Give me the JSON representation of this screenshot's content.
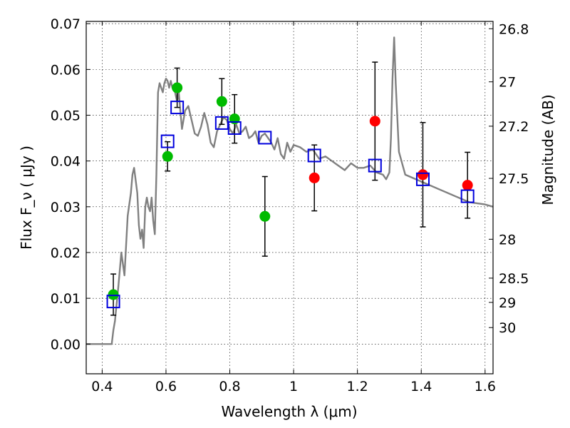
{
  "chart_data": {
    "type": "scatter",
    "xlabel": "Wavelength  λ (μm)",
    "ylabel": "Flux  F_ν  ( μJy )",
    "y2label": "Magnitude (AB)",
    "xlim": [
      0.35,
      1.625
    ],
    "ylim": [
      -0.0065,
      0.0705
    ],
    "grid": true,
    "x_ticks": [
      0.4,
      0.6,
      0.8,
      1.0,
      1.2,
      1.4,
      1.6
    ],
    "x_tick_labels": [
      "0.4",
      "0.6",
      "0.8",
      "1",
      "1.2",
      "1.4",
      "1.6"
    ],
    "y_ticks": [
      0.0,
      0.01,
      0.02,
      0.03,
      0.04,
      0.05,
      0.06,
      0.07
    ],
    "y_tick_labels": [
      "0.00",
      "0.01",
      "0.02",
      "0.03",
      "0.04",
      "0.05",
      "0.06",
      "0.07"
    ],
    "y2_ticks": [
      {
        "label": "26.8",
        "flux": 0.0689
      },
      {
        "label": "27",
        "flux": 0.0573
      },
      {
        "label": "27.2",
        "flux": 0.0476
      },
      {
        "label": "27.5",
        "flux": 0.0362
      },
      {
        "label": "28",
        "flux": 0.0229
      },
      {
        "label": "28.5",
        "flux": 0.0144
      },
      {
        "label": "29",
        "flux": 0.0091
      },
      {
        "label": "30",
        "flux": 0.0036
      }
    ],
    "colors": {
      "model": "#808080",
      "green_points": "#00bb00",
      "red_points": "#ff0000",
      "squares": "#0000dd",
      "errorbars": "#000000"
    },
    "series": [
      {
        "marker": "line",
        "x": [
          0.35,
          0.43,
          0.435,
          0.44,
          0.45,
          0.46,
          0.47,
          0.48,
          0.49,
          0.495,
          0.5,
          0.51,
          0.515,
          0.52,
          0.525,
          0.53,
          0.535,
          0.54,
          0.545,
          0.55,
          0.555,
          0.56,
          0.565,
          0.57,
          0.575,
          0.58,
          0.585,
          0.59,
          0.595,
          0.6,
          0.605,
          0.61,
          0.615,
          0.62,
          0.625,
          0.63,
          0.635,
          0.64,
          0.645,
          0.65,
          0.66,
          0.67,
          0.68,
          0.69,
          0.7,
          0.71,
          0.72,
          0.73,
          0.74,
          0.75,
          0.76,
          0.77,
          0.78,
          0.79,
          0.8,
          0.81,
          0.82,
          0.83,
          0.84,
          0.85,
          0.86,
          0.87,
          0.88,
          0.89,
          0.9,
          0.91,
          0.92,
          0.93,
          0.94,
          0.95,
          0.96,
          0.97,
          0.98,
          0.99,
          1.0,
          1.02,
          1.04,
          1.06,
          1.08,
          1.1,
          1.12,
          1.14,
          1.16,
          1.18,
          1.2,
          1.22,
          1.24,
          1.26,
          1.28,
          1.29,
          1.3,
          1.305,
          1.31,
          1.315,
          1.32,
          1.33,
          1.35,
          1.4,
          1.45,
          1.5,
          1.55,
          1.6,
          1.625
        ],
        "y": [
          0.0,
          0.0,
          0.003,
          0.005,
          0.012,
          0.02,
          0.015,
          0.028,
          0.033,
          0.037,
          0.0385,
          0.033,
          0.026,
          0.023,
          0.025,
          0.021,
          0.03,
          0.032,
          0.03,
          0.029,
          0.032,
          0.027,
          0.024,
          0.037,
          0.055,
          0.057,
          0.056,
          0.055,
          0.057,
          0.058,
          0.0575,
          0.056,
          0.0575,
          0.056,
          0.0565,
          0.0545,
          0.053,
          0.055,
          0.051,
          0.047,
          0.051,
          0.052,
          0.049,
          0.046,
          0.0455,
          0.0475,
          0.0505,
          0.048,
          0.044,
          0.043,
          0.0465,
          0.048,
          0.0495,
          0.049,
          0.047,
          0.046,
          0.048,
          0.046,
          0.0465,
          0.0475,
          0.045,
          0.0455,
          0.0465,
          0.044,
          0.0455,
          0.046,
          0.045,
          0.044,
          0.0425,
          0.045,
          0.0415,
          0.0405,
          0.044,
          0.042,
          0.0435,
          0.043,
          0.042,
          0.0425,
          0.0405,
          0.041,
          0.04,
          0.039,
          0.038,
          0.0395,
          0.0385,
          0.0385,
          0.039,
          0.0375,
          0.037,
          0.036,
          0.0375,
          0.045,
          0.058,
          0.067,
          0.057,
          0.042,
          0.037,
          0.0355,
          0.034,
          0.0325,
          0.031,
          0.0305,
          0.03
        ]
      },
      {
        "marker": "filled-circle",
        "color": "green",
        "points": [
          {
            "x": 0.435,
            "y": 0.0108,
            "yerr": 0.0045
          },
          {
            "x": 0.605,
            "y": 0.041,
            "yerr": 0.0032
          },
          {
            "x": 0.635,
            "y": 0.056,
            "yerr": 0.0043
          },
          {
            "x": 0.775,
            "y": 0.053,
            "yerr": 0.005
          },
          {
            "x": 0.815,
            "y": 0.0492,
            "yerr": 0.0053
          },
          {
            "x": 0.91,
            "y": 0.0279,
            "yerr": 0.0087
          }
        ]
      },
      {
        "marker": "filled-circle",
        "color": "red",
        "points": [
          {
            "x": 1.065,
            "y": 0.0363,
            "yerr": 0.0072
          },
          {
            "x": 1.255,
            "y": 0.0487,
            "yerr": 0.0129
          },
          {
            "x": 1.405,
            "y": 0.037,
            "yerr": 0.0114
          },
          {
            "x": 1.545,
            "y": 0.0347,
            "yerr": 0.0072
          }
        ]
      },
      {
        "marker": "open-square",
        "color": "blue",
        "points": [
          {
            "x": 0.435,
            "y": 0.0093
          },
          {
            "x": 0.605,
            "y": 0.0443
          },
          {
            "x": 0.635,
            "y": 0.0517
          },
          {
            "x": 0.775,
            "y": 0.0483
          },
          {
            "x": 0.815,
            "y": 0.0472
          },
          {
            "x": 0.91,
            "y": 0.0451
          },
          {
            "x": 1.065,
            "y": 0.0412
          },
          {
            "x": 1.255,
            "y": 0.039
          },
          {
            "x": 1.405,
            "y": 0.036
          },
          {
            "x": 1.545,
            "y": 0.0323
          }
        ]
      }
    ]
  }
}
